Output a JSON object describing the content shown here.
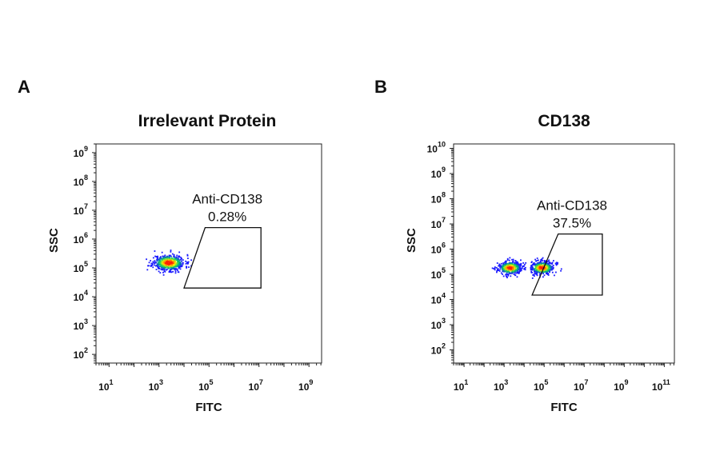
{
  "panels": [
    {
      "letter": "A",
      "title": "Irrelevant Protein"
    },
    {
      "letter": "B",
      "title": "CD138"
    }
  ],
  "chart_data": [
    {
      "type": "scatter",
      "title": "Irrelevant Protein",
      "xlabel": "FITC",
      "ylabel": "SSC",
      "x_scale": "log",
      "y_scale": "log",
      "xlim": [
        3,
        3200000000.0
      ],
      "ylim": [
        50,
        2000000000.0
      ],
      "x_ticks": [
        10,
        1000,
        100000,
        10000000,
        1000000000
      ],
      "x_tick_labels": [
        {
          "base": "10",
          "exp": "1"
        },
        {
          "base": "10",
          "exp": "3"
        },
        {
          "base": "10",
          "exp": "5"
        },
        {
          "base": "10",
          "exp": "7"
        },
        {
          "base": "10",
          "exp": "9"
        }
      ],
      "y_ticks": [
        100,
        1000,
        10000,
        100000,
        1000000,
        10000000,
        100000000,
        1000000000
      ],
      "y_tick_labels": [
        {
          "base": "10",
          "exp": "2"
        },
        {
          "base": "10",
          "exp": "3"
        },
        {
          "base": "10",
          "exp": "4"
        },
        {
          "base": "10",
          "exp": "5"
        },
        {
          "base": "10",
          "exp": "6"
        },
        {
          "base": "10",
          "exp": "7"
        },
        {
          "base": "10",
          "exp": "8"
        },
        {
          "base": "10",
          "exp": "9"
        }
      ],
      "populations": [
        {
          "center": [
            2500,
            150000
          ],
          "spread": [
            0.32,
            0.14
          ],
          "count": 520,
          "seed": 11
        }
      ],
      "gate": {
        "name": "Anti-CD138",
        "value": "0.28%",
        "polygon": [
          [
            10000,
            20000
          ],
          [
            70000,
            2500000
          ],
          [
            12000000,
            2500000
          ],
          [
            12000000,
            20000
          ]
        ]
      },
      "colors": {
        "low": "#1a1aff",
        "mid": "#00cc66",
        "high": "#ffee00",
        "peak": "#ff2200"
      }
    },
    {
      "type": "scatter",
      "title": "CD138",
      "xlabel": "FITC",
      "ylabel": "SSC",
      "x_scale": "log",
      "y_scale": "log",
      "xlim": [
        3,
        320000000000.0
      ],
      "ylim": [
        30,
        15000000000.0
      ],
      "x_ticks": [
        10,
        1000,
        100000,
        10000000,
        1000000000,
        100000000000
      ],
      "x_tick_labels": [
        {
          "base": "10",
          "exp": "1"
        },
        {
          "base": "10",
          "exp": "3"
        },
        {
          "base": "10",
          "exp": "5"
        },
        {
          "base": "10",
          "exp": "7"
        },
        {
          "base": "10",
          "exp": "9"
        },
        {
          "base": "10",
          "exp": "11"
        }
      ],
      "y_ticks": [
        100,
        1000,
        10000,
        100000,
        1000000,
        10000000,
        100000000,
        1000000000,
        10000000000
      ],
      "y_tick_labels": [
        {
          "base": "10",
          "exp": "2"
        },
        {
          "base": "10",
          "exp": "3"
        },
        {
          "base": "10",
          "exp": "4"
        },
        {
          "base": "10",
          "exp": "5"
        },
        {
          "base": "10",
          "exp": "6"
        },
        {
          "base": "10",
          "exp": "7"
        },
        {
          "base": "10",
          "exp": "8"
        },
        {
          "base": "10",
          "exp": "9"
        },
        {
          "base": "10",
          "exp": "10"
        }
      ],
      "populations": [
        {
          "center": [
            2000,
            180000
          ],
          "spread": [
            0.3,
            0.13
          ],
          "count": 420,
          "seed": 23
        },
        {
          "center": [
            80000,
            180000
          ],
          "spread": [
            0.3,
            0.13
          ],
          "count": 420,
          "seed": 47
        }
      ],
      "gate": {
        "name": "Anti-CD138",
        "value": "37.5%",
        "polygon": [
          [
            25000,
            15000
          ],
          [
            500000,
            4000000
          ],
          [
            80000000,
            4000000
          ],
          [
            80000000,
            15000
          ]
        ]
      },
      "colors": {
        "low": "#1a1aff",
        "mid": "#00cc66",
        "high": "#ffee00",
        "peak": "#ff2200"
      }
    }
  ]
}
